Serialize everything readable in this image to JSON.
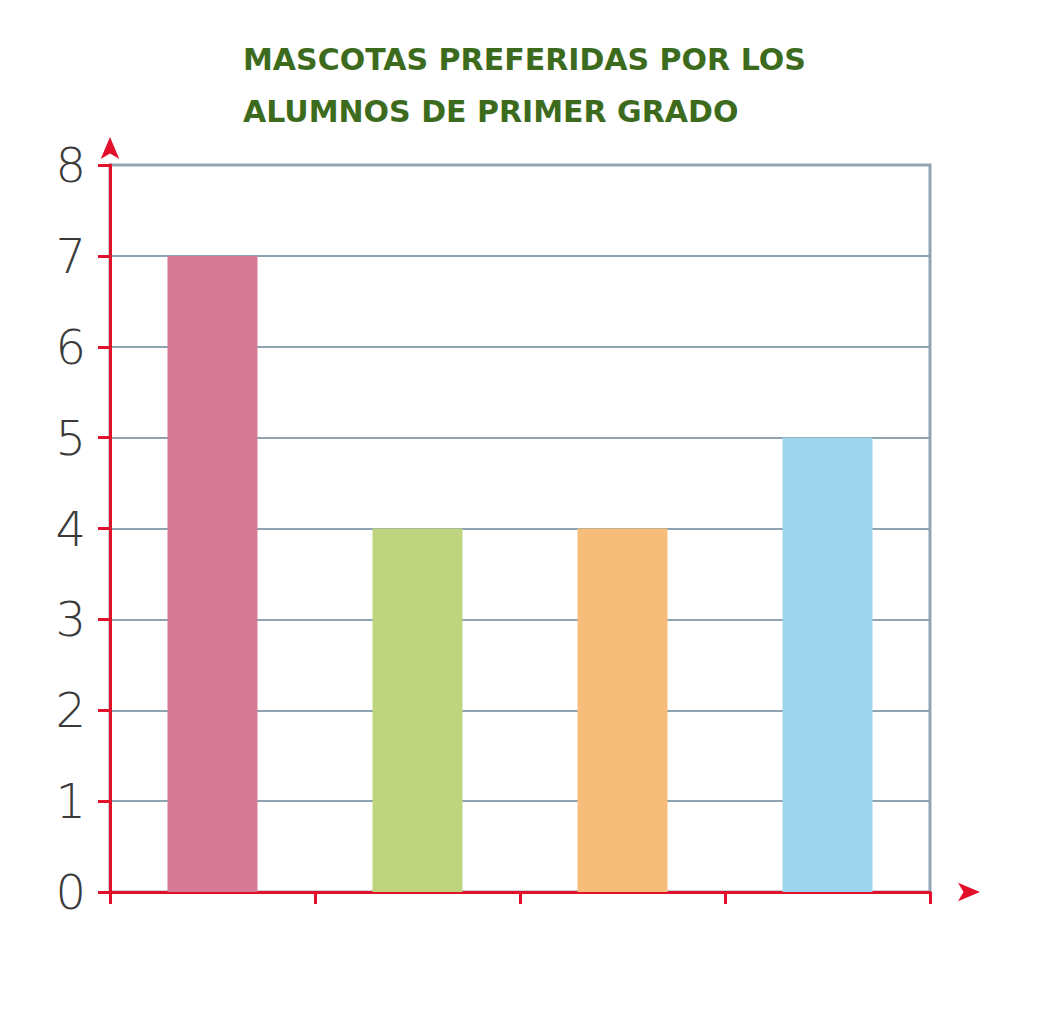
{
  "chart_data": {
    "type": "bar",
    "title": "MASCOTAS PREFERIDAS POR LOS\nALUMNOS DE PRIMER GRADO",
    "categories": [
      null,
      null,
      null,
      null
    ],
    "values": [
      7,
      4,
      4,
      5
    ],
    "colors": [
      "#d67a96",
      "#bed47e",
      "#f6bd7a",
      "#9dd5ec"
    ],
    "ylim": [
      0,
      8
    ],
    "yticks": [
      0,
      1,
      2,
      3,
      4,
      5,
      6,
      7,
      8
    ],
    "grid": true
  }
}
